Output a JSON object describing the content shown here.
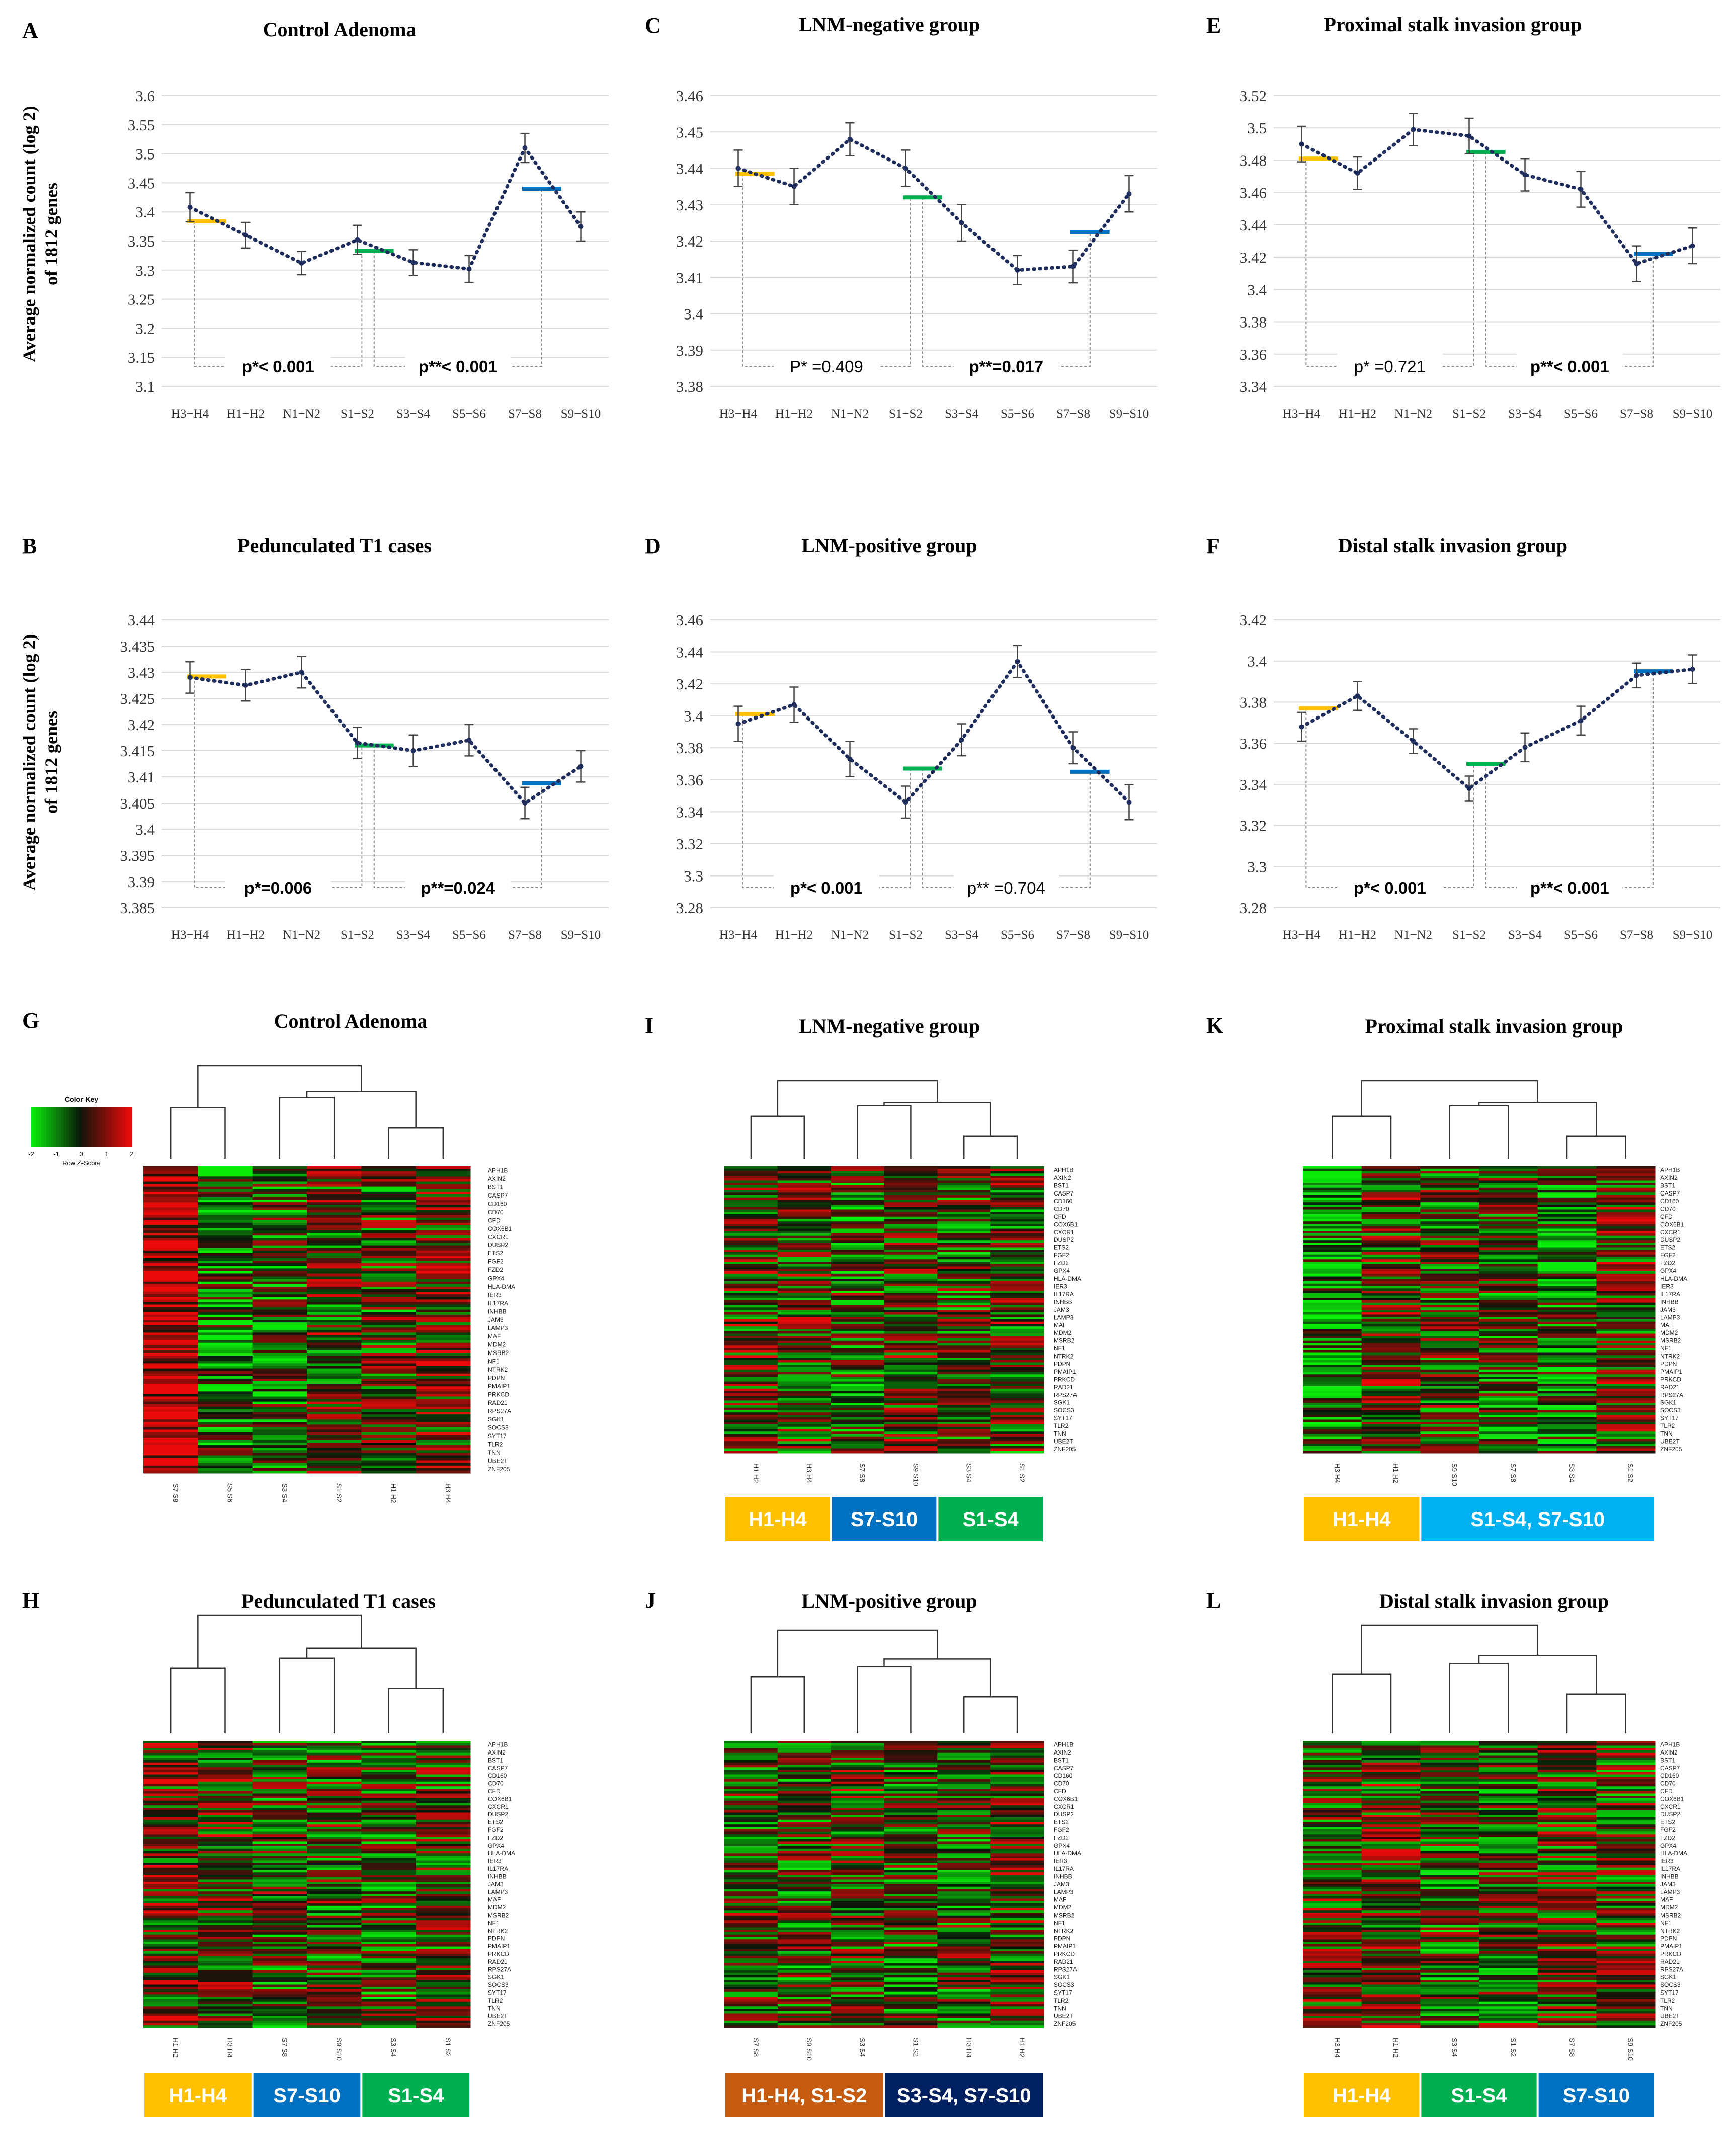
{
  "shared": {
    "ylabel_line1": "Average normalized count (log 2)",
    "ylabel_line2": "of 1812 genes",
    "categories": [
      "H3−H4",
      "H1−H2",
      "N1−N2",
      "S1−S2",
      "S3−S4",
      "S5−S6",
      "S7−S8",
      "S9−S10"
    ],
    "genes": [
      "APH1B",
      "AXIN2",
      "BST1",
      "CASP7",
      "CD160",
      "CD70",
      "CFD",
      "COX6B1",
      "CXCR1",
      "DUSP2",
      "ETS2",
      "FGF2",
      "FZD2",
      "GPX4",
      "HLA-DMA",
      "IER3",
      "IL17RA",
      "INHBB",
      "JAM3",
      "LAMP3",
      "MAF",
      "MDM2",
      "MSRB2",
      "NF1",
      "NTRK2",
      "PDPN",
      "PMAIP1",
      "PRKCD",
      "RAD21",
      "RPS27A",
      "SGK1",
      "SOCS3",
      "SYT17",
      "TLR2",
      "TNN",
      "UBE2T",
      "ZNF205"
    ],
    "colors": {
      "dots": "#1f2d5c",
      "yellow": "#FFC000",
      "green": "#00B050",
      "blue": "#0070C0",
      "cyan": "#00B0F0",
      "orange": "#C55A11",
      "navy": "#002060"
    }
  },
  "chart_data": [
    {
      "letter": "A",
      "type": "line",
      "title": "Control Adenoma",
      "ylim": [
        3.1,
        3.6
      ],
      "yticks": [
        "3.6",
        "3.55",
        "3.5",
        "3.45",
        "3.4",
        "3.35",
        "3.3",
        "3.25",
        "3.2",
        "3.15",
        "3.1"
      ],
      "values": [
        3.408,
        3.36,
        3.312,
        3.352,
        3.313,
        3.302,
        3.51,
        3.375
      ],
      "errors": [
        0.025,
        0.022,
        0.02,
        0.025,
        0.022,
        0.023,
        0.025,
        0.025
      ],
      "segments": [
        {
          "from": 0,
          "to": 1,
          "value": 3.384,
          "color": "yellow"
        },
        {
          "from": 3,
          "to": 4,
          "value": 3.333,
          "color": "green"
        },
        {
          "from": 6,
          "to": 7,
          "value": 3.44,
          "color": "blue"
        }
      ],
      "p1": {
        "label": "p*< 0.001",
        "bold": true
      },
      "p2": {
        "label": "p**< 0.001",
        "bold": true
      }
    },
    {
      "letter": "C",
      "type": "line",
      "title": "LNM-negative group",
      "ylim": [
        3.38,
        3.46
      ],
      "yticks": [
        "3.46",
        "3.45",
        "3.44",
        "3.43",
        "3.42",
        "3.41",
        "3.4",
        "3.39",
        "3.38"
      ],
      "values": [
        3.44,
        3.435,
        3.448,
        3.44,
        3.425,
        3.412,
        3.413,
        3.433
      ],
      "errors": [
        0.005,
        0.005,
        0.0045,
        0.005,
        0.005,
        0.004,
        0.0045,
        0.005
      ],
      "segments": [
        {
          "from": 0,
          "to": 1,
          "value": 3.4385,
          "color": "yellow"
        },
        {
          "from": 3,
          "to": 4,
          "value": 3.432,
          "color": "green"
        },
        {
          "from": 6,
          "to": 7,
          "value": 3.4225,
          "color": "blue"
        }
      ],
      "p1": {
        "label": "P* =0.409",
        "bold": false
      },
      "p2": {
        "label": "p**=0.017",
        "bold": true
      }
    },
    {
      "letter": "E",
      "type": "line",
      "title": "Proximal stalk invasion  group",
      "ylim": [
        3.34,
        3.52
      ],
      "yticks": [
        "3.52",
        "3.5",
        "3.48",
        "3.46",
        "3.44",
        "3.42",
        "3.4",
        "3.38",
        "3.36",
        "3.34"
      ],
      "values": [
        3.49,
        3.472,
        3.499,
        3.495,
        3.471,
        3.462,
        3.416,
        3.427
      ],
      "errors": [
        0.011,
        0.01,
        0.01,
        0.011,
        0.01,
        0.011,
        0.011,
        0.011
      ],
      "segments": [
        {
          "from": 0,
          "to": 1,
          "value": 3.481,
          "color": "yellow"
        },
        {
          "from": 3,
          "to": 4,
          "value": 3.485,
          "color": "green"
        },
        {
          "from": 6,
          "to": 7,
          "value": 3.422,
          "color": "blue"
        }
      ],
      "p1": {
        "label": "p* =0.721",
        "bold": false
      },
      "p2": {
        "label": "p**< 0.001",
        "bold": true
      }
    },
    {
      "letter": "B",
      "type": "line",
      "title": "Pedunculated T1 cases",
      "ylim": [
        3.385,
        3.44
      ],
      "yticks": [
        "3.44",
        "3.435",
        "3.43",
        "3.425",
        "3.42",
        "3.415",
        "3.41",
        "3.405",
        "3.4",
        "3.395",
        "3.39",
        "3.385"
      ],
      "values": [
        3.429,
        3.4275,
        3.43,
        3.4165,
        3.415,
        3.417,
        3.405,
        3.412
      ],
      "errors": [
        0.003,
        0.003,
        0.003,
        0.003,
        0.003,
        0.003,
        0.003,
        0.003
      ],
      "segments": [
        {
          "from": 0,
          "to": 1,
          "value": 3.4292,
          "color": "yellow"
        },
        {
          "from": 3,
          "to": 4,
          "value": 3.416,
          "color": "green"
        },
        {
          "from": 6,
          "to": 7,
          "value": 3.4088,
          "color": "blue"
        }
      ],
      "p1": {
        "label": "p*=0.006",
        "bold": true
      },
      "p2": {
        "label": "p**=0.024",
        "bold": true
      }
    },
    {
      "letter": "D",
      "type": "line",
      "title": "LNM-positive group",
      "ylim": [
        3.28,
        3.46
      ],
      "yticks": [
        "3.46",
        "3.44",
        "3.42",
        "3.4",
        "3.38",
        "3.36",
        "3.34",
        "3.32",
        "3.3",
        "3.28"
      ],
      "values": [
        3.395,
        3.407,
        3.373,
        3.346,
        3.385,
        3.434,
        3.38,
        3.346
      ],
      "errors": [
        0.011,
        0.011,
        0.011,
        0.01,
        0.01,
        0.01,
        0.01,
        0.011
      ],
      "segments": [
        {
          "from": 0,
          "to": 1,
          "value": 3.401,
          "color": "yellow"
        },
        {
          "from": 3,
          "to": 4,
          "value": 3.367,
          "color": "green"
        },
        {
          "from": 6,
          "to": 7,
          "value": 3.365,
          "color": "blue"
        }
      ],
      "p1": {
        "label": "p*< 0.001",
        "bold": true
      },
      "p2": {
        "label": "p** =0.704",
        "bold": false
      }
    },
    {
      "letter": "F",
      "type": "line",
      "title": "Distal stalk invasion group",
      "ylim": [
        3.28,
        3.42
      ],
      "yticks": [
        "3.42",
        "3.4",
        "3.38",
        "3.36",
        "3.34",
        "3.32",
        "3.3",
        "3.28"
      ],
      "values": [
        3.368,
        3.383,
        3.361,
        3.338,
        3.358,
        3.371,
        3.393,
        3.396
      ],
      "errors": [
        0.007,
        0.007,
        0.006,
        0.006,
        0.007,
        0.007,
        0.006,
        0.007
      ],
      "segments": [
        {
          "from": 0,
          "to": 1,
          "value": 3.377,
          "color": "yellow"
        },
        {
          "from": 3,
          "to": 4,
          "value": 3.35,
          "color": "green"
        },
        {
          "from": 6,
          "to": 7,
          "value": 3.395,
          "color": "blue"
        }
      ],
      "p1": {
        "label": "p*< 0.001",
        "bold": true
      },
      "p2": {
        "label": "p**< 0.001",
        "bold": true
      }
    },
    {
      "letter": "G",
      "type": "heatmap",
      "title": "Control Adenoma",
      "samples": [
        "S7 S8",
        "S5 S6",
        "S3 S4",
        "S1 S2",
        "H1 H2",
        "H3 H4"
      ],
      "bias": [
        0.9,
        -0.35,
        -0.25,
        0.05,
        -0.05,
        0.2
      ],
      "seed": 11,
      "groups": [],
      "color_key": {
        "title": "Color Key",
        "ticks": [
          "-2",
          "-1",
          "0",
          "1",
          "2"
        ],
        "label": "Row Z-Score"
      }
    },
    {
      "letter": "I",
      "type": "heatmap",
      "title": "LNM-negative group",
      "samples": [
        "H1 H2",
        "H3 H4",
        "S7 S8",
        "S9 S10",
        "S3 S4",
        "S1 S2"
      ],
      "bias": [
        0.1,
        0.05,
        -0.15,
        0.1,
        -0.05,
        0.0
      ],
      "seed": 23,
      "groups": [
        {
          "label": "H1-H4",
          "color": "yellow",
          "span": 2
        },
        {
          "label": "S7-S10",
          "color": "blue",
          "span": 2
        },
        {
          "label": "S1-S4",
          "color": "green",
          "span": 2
        }
      ]
    },
    {
      "letter": "K",
      "type": "heatmap",
      "title": "Proximal stalk invasion  group",
      "samples": [
        "H3 H4",
        "H1 H2",
        "S9 S10",
        "S7 S8",
        "S3 S4",
        "S1 S2"
      ],
      "bias": [
        -0.55,
        0.1,
        -0.05,
        -0.15,
        -0.3,
        0.05
      ],
      "seed": 37,
      "groups": [
        {
          "label": "H1-H4",
          "color": "yellow",
          "span": 2
        },
        {
          "label": "S1-S4, S7-S10",
          "color": "cyan",
          "span": 4
        }
      ]
    },
    {
      "letter": "H",
      "type": "heatmap",
      "title": "Pedunculated T1 cases",
      "samples": [
        "H1 H2",
        "H3 H4",
        "S7 S8",
        "S9 S10",
        "S3 S4",
        "S1 S2"
      ],
      "bias": [
        0.15,
        0.1,
        -0.1,
        -0.05,
        -0.15,
        0.0
      ],
      "seed": 41,
      "groups": [
        {
          "label": "H1-H4",
          "color": "yellow",
          "span": 2
        },
        {
          "label": "S7-S10",
          "color": "blue",
          "span": 2
        },
        {
          "label": "S1-S4",
          "color": "green",
          "span": 2
        }
      ]
    },
    {
      "letter": "J",
      "type": "heatmap",
      "title": "LNM-positive group",
      "samples": [
        "S7 S8",
        "S9 S10",
        "S3 S4",
        "S1 S2",
        "H3 H4",
        "H1 H2"
      ],
      "bias": [
        0.0,
        -0.1,
        0.05,
        -0.15,
        -0.05,
        0.1
      ],
      "seed": 53,
      "groups": [
        {
          "label": "H1-H4, S1-S2",
          "color": "orange",
          "span": 3
        },
        {
          "label": "S3-S4, S7-S10",
          "color": "navy",
          "span": 3
        }
      ]
    },
    {
      "letter": "L",
      "type": "heatmap",
      "title": "Distal stalk invasion group",
      "samples": [
        "H3 H4",
        "H1 H2",
        "S3 S4",
        "S1 S2",
        "S7 S8",
        "S9 S10"
      ],
      "bias": [
        0.05,
        0.1,
        -0.1,
        -0.05,
        0.05,
        0.0
      ],
      "seed": 67,
      "groups": [
        {
          "label": "H1-H4",
          "color": "yellow",
          "span": 2
        },
        {
          "label": "S1-S4",
          "color": "green",
          "span": 2
        },
        {
          "label": "S7-S10",
          "color": "blue",
          "span": 2
        }
      ]
    }
  ]
}
